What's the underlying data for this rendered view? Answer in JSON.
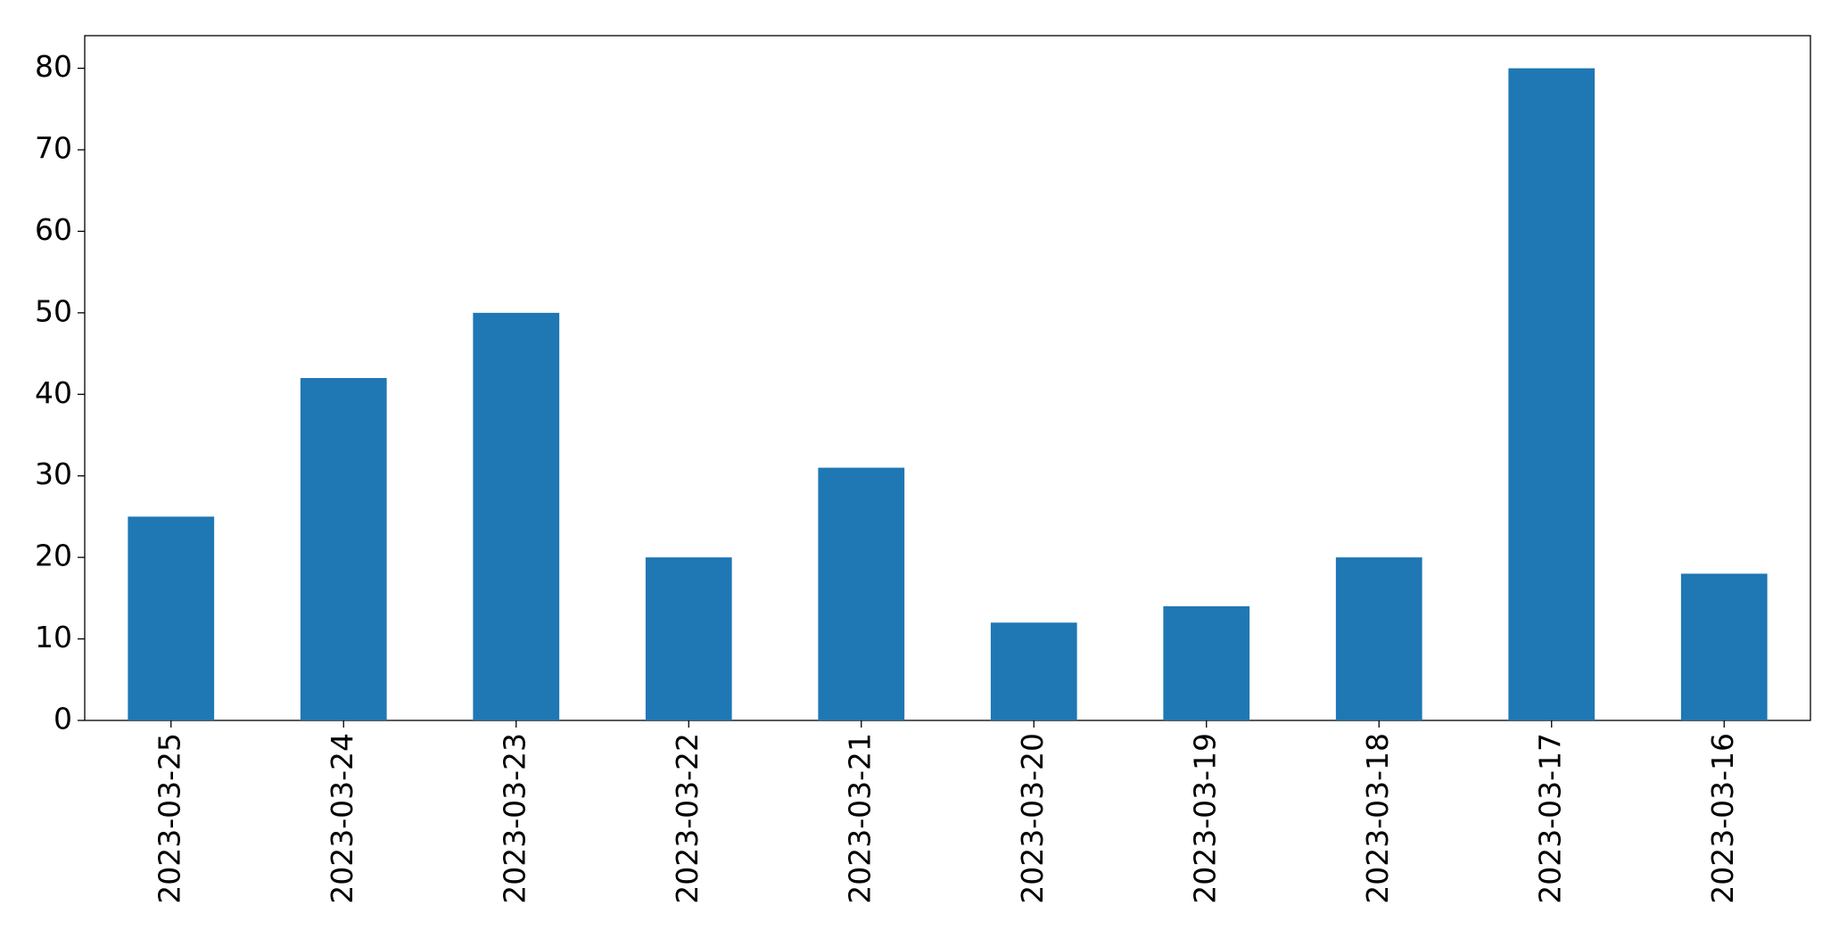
{
  "chart_data": {
    "type": "bar",
    "categories": [
      "2023-03-25",
      "2023-03-24",
      "2023-03-23",
      "2023-03-22",
      "2023-03-21",
      "2023-03-20",
      "2023-03-19",
      "2023-03-18",
      "2023-03-17",
      "2023-03-16"
    ],
    "values": [
      25,
      42,
      50,
      20,
      31,
      12,
      14,
      20,
      80,
      18
    ],
    "color": "#1f77b4",
    "ylim": [
      0,
      84
    ],
    "yticks": [
      0,
      10,
      20,
      30,
      40,
      50,
      60,
      70,
      80
    ],
    "grid": false
  }
}
